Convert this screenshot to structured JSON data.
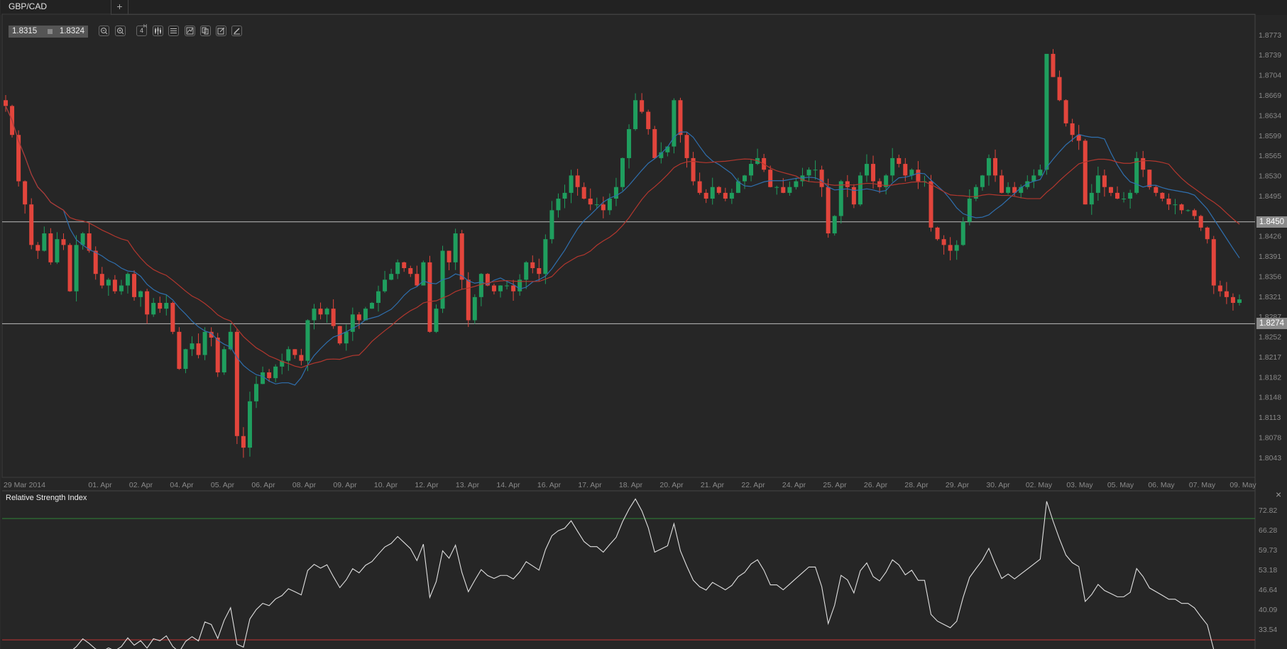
{
  "tabs": {
    "active": "GBP/CAD",
    "add_label": "+"
  },
  "toolbar": {
    "bid": "1.8315",
    "ask": "1.8324",
    "timeframe": "4",
    "timeframe_unit": "H",
    "buttons": [
      "zoom-out-icon",
      "zoom-in-icon",
      "timeframe-4h",
      "candles-icon",
      "settings-sliders-icon",
      "chart-type-icon",
      "copy-icon",
      "edit-icon",
      "draw-icon"
    ]
  },
  "colors": {
    "up": "#1f9e5e",
    "down": "#e2453c",
    "ma_fast": "#2f6fae",
    "ma_slow": "#b3372e",
    "rsi": "#e0e0e0",
    "overbought": "#2f7a35",
    "oversold": "#a33030",
    "hline": "#bdbdbd"
  },
  "price_axis": {
    "ticks": [
      "1.8773",
      "1.8739",
      "1.8704",
      "1.8669",
      "1.8634",
      "1.8599",
      "1.8565",
      "1.8530",
      "1.8495",
      "1.8426",
      "1.8391",
      "1.8356",
      "1.8321",
      "1.8287",
      "1.8252",
      "1.8217",
      "1.8182",
      "1.8148",
      "1.8113",
      "1.8078",
      "1.8043"
    ],
    "range": [
      1.8043,
      1.8773
    ]
  },
  "horizontal_lines": [
    {
      "label": "1.8450",
      "value": 1.845
    },
    {
      "label": "1.8274",
      "value": 1.8274
    }
  ],
  "time_axis": [
    "29 Mar 2014",
    "01. Apr",
    "02. Apr",
    "04. Apr",
    "05. Apr",
    "06. Apr",
    "08. Apr",
    "09. Apr",
    "10. Apr",
    "12. Apr",
    "13. Apr",
    "14. Apr",
    "16. Apr",
    "17. Apr",
    "18. Apr",
    "20. Apr",
    "21. Apr",
    "22. Apr",
    "24. Apr",
    "25. Apr",
    "26. Apr",
    "28. Apr",
    "29. Apr",
    "30. Apr",
    "02. May",
    "03. May",
    "05. May",
    "06. May",
    "07. May",
    "09. May"
  ],
  "indicators": {
    "ma_periods": [
      10,
      20
    ],
    "rsi_period": 14
  },
  "rsi_pane": {
    "title": "Relative Strength Index",
    "close_label": "×",
    "ticks": [
      "72.82",
      "66.28",
      "59.73",
      "53.18",
      "46.64",
      "40.09",
      "33.54"
    ],
    "range": [
      33.54,
      72.82
    ],
    "levels": [
      70,
      30
    ]
  },
  "chart_data": {
    "type": "candlestick",
    "symbol": "GBP/CAD",
    "interval": "4H",
    "closes": [
      1.865,
      1.86,
      1.852,
      1.848,
      1.841,
      1.84,
      1.843,
      1.838,
      1.842,
      1.841,
      1.833,
      1.841,
      1.843,
      1.84,
      1.836,
      1.834,
      1.835,
      1.833,
      1.834,
      1.836,
      1.832,
      1.833,
      1.829,
      1.831,
      1.83,
      1.831,
      1.826,
      1.8196,
      1.823,
      1.824,
      1.822,
      1.826,
      1.825,
      1.819,
      1.823,
      1.826,
      1.808,
      1.806,
      1.814,
      1.817,
      1.819,
      1.818,
      1.82,
      1.821,
      1.823,
      1.822,
      1.821,
      1.828,
      1.83,
      1.829,
      1.83,
      1.827,
      1.824,
      1.826,
      1.829,
      1.828,
      1.83,
      1.831,
      1.833,
      1.835,
      1.836,
      1.838,
      1.837,
      1.836,
      1.834,
      1.838,
      1.826,
      1.83,
      1.84,
      1.838,
      1.843,
      1.835,
      1.828,
      1.832,
      1.836,
      1.834,
      1.833,
      1.834,
      1.834,
      1.833,
      1.835,
      1.838,
      1.837,
      1.836,
      1.842,
      1.847,
      1.849,
      1.85,
      1.853,
      1.851,
      1.849,
      1.848,
      1.848,
      1.847,
      1.849,
      1.851,
      1.856,
      1.861,
      1.866,
      1.864,
      1.861,
      1.856,
      1.857,
      1.858,
      1.866,
      1.86,
      1.856,
      1.852,
      1.85,
      1.849,
      1.851,
      1.85,
      1.849,
      1.85,
      1.852,
      1.853,
      1.855,
      1.856,
      1.854,
      1.851,
      1.851,
      1.85,
      1.851,
      1.852,
      1.853,
      1.854,
      1.854,
      1.851,
      1.843,
      1.846,
      1.852,
      1.851,
      1.848,
      1.853,
      1.855,
      1.852,
      1.851,
      1.853,
      1.856,
      1.855,
      1.853,
      1.854,
      1.852,
      1.852,
      1.844,
      1.842,
      1.841,
      1.84,
      1.841,
      1.845,
      1.849,
      1.851,
      1.853,
      1.856,
      1.853,
      1.85,
      1.851,
      1.85,
      1.851,
      1.852,
      1.853,
      1.854,
      1.874,
      1.87,
      1.866,
      1.862,
      1.86,
      1.859,
      1.848,
      1.85,
      1.853,
      1.851,
      1.85,
      1.849,
      1.849,
      1.85,
      1.856,
      1.854,
      1.851,
      1.85,
      1.849,
      1.848,
      1.848,
      1.847,
      1.847,
      1.846,
      1.844,
      1.842,
      1.834,
      1.833,
      1.832,
      1.831,
      1.8316
    ]
  }
}
